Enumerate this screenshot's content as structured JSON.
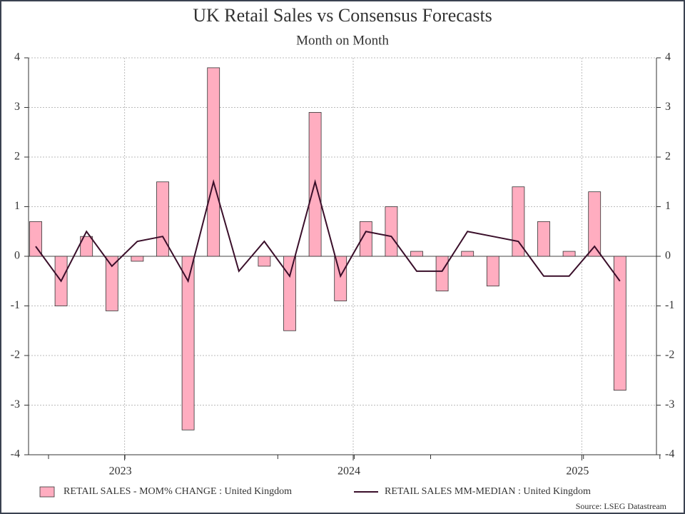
{
  "chart_data": {
    "type": "bar_line",
    "title": "UK Retail Sales vs Consensus Forecasts",
    "subtitle": "Month on Month",
    "source": "Source: LSEG Datastream",
    "categories": [
      null,
      null,
      null,
      null,
      "2023",
      null,
      null,
      null,
      null,
      null,
      null,
      null,
      null,
      "2024",
      null,
      null,
      null,
      null,
      null,
      null,
      null,
      null,
      "2025",
      null
    ],
    "series": [
      {
        "name": "RETAIL SALES - MOM% CHANGE : United Kingdom",
        "color": "#ffadc0",
        "kind": "bar",
        "values": [
          0.7,
          -1.0,
          0.4,
          -1.1,
          -0.1,
          1.5,
          -3.5,
          3.8,
          0,
          -0.2,
          -1.5,
          2.9,
          -0.9,
          0.7,
          1.0,
          0.1,
          -0.7,
          0.1,
          -0.6,
          1.4,
          0.7,
          0.1,
          1.3,
          -2.7
        ]
      },
      {
        "name": "RETAIL SALES MM-MEDIAN : United Kingdom",
        "color": "#3a0f2a",
        "kind": "line",
        "axis": "y2",
        "values": [
          0.2,
          -0.5,
          0.5,
          -0.2,
          0.3,
          0.4,
          -0.5,
          1.5,
          -0.3,
          0.3,
          -0.4,
          1.5,
          -0.4,
          0.5,
          0.4,
          -0.3,
          -0.3,
          0.5,
          0.4,
          0.3,
          -0.4,
          -0.4,
          0.2,
          -0.5
        ]
      }
    ],
    "ylim": [
      -4,
      4
    ],
    "yticks": [
      -4,
      -3,
      -2,
      -1,
      0,
      1,
      2,
      3,
      4
    ],
    "y2lim": [
      -4,
      4
    ],
    "y2ticks": [
      -4,
      -3,
      -2,
      -1,
      0,
      1,
      2,
      3,
      4
    ],
    "grid": true,
    "legend": "bottom"
  }
}
